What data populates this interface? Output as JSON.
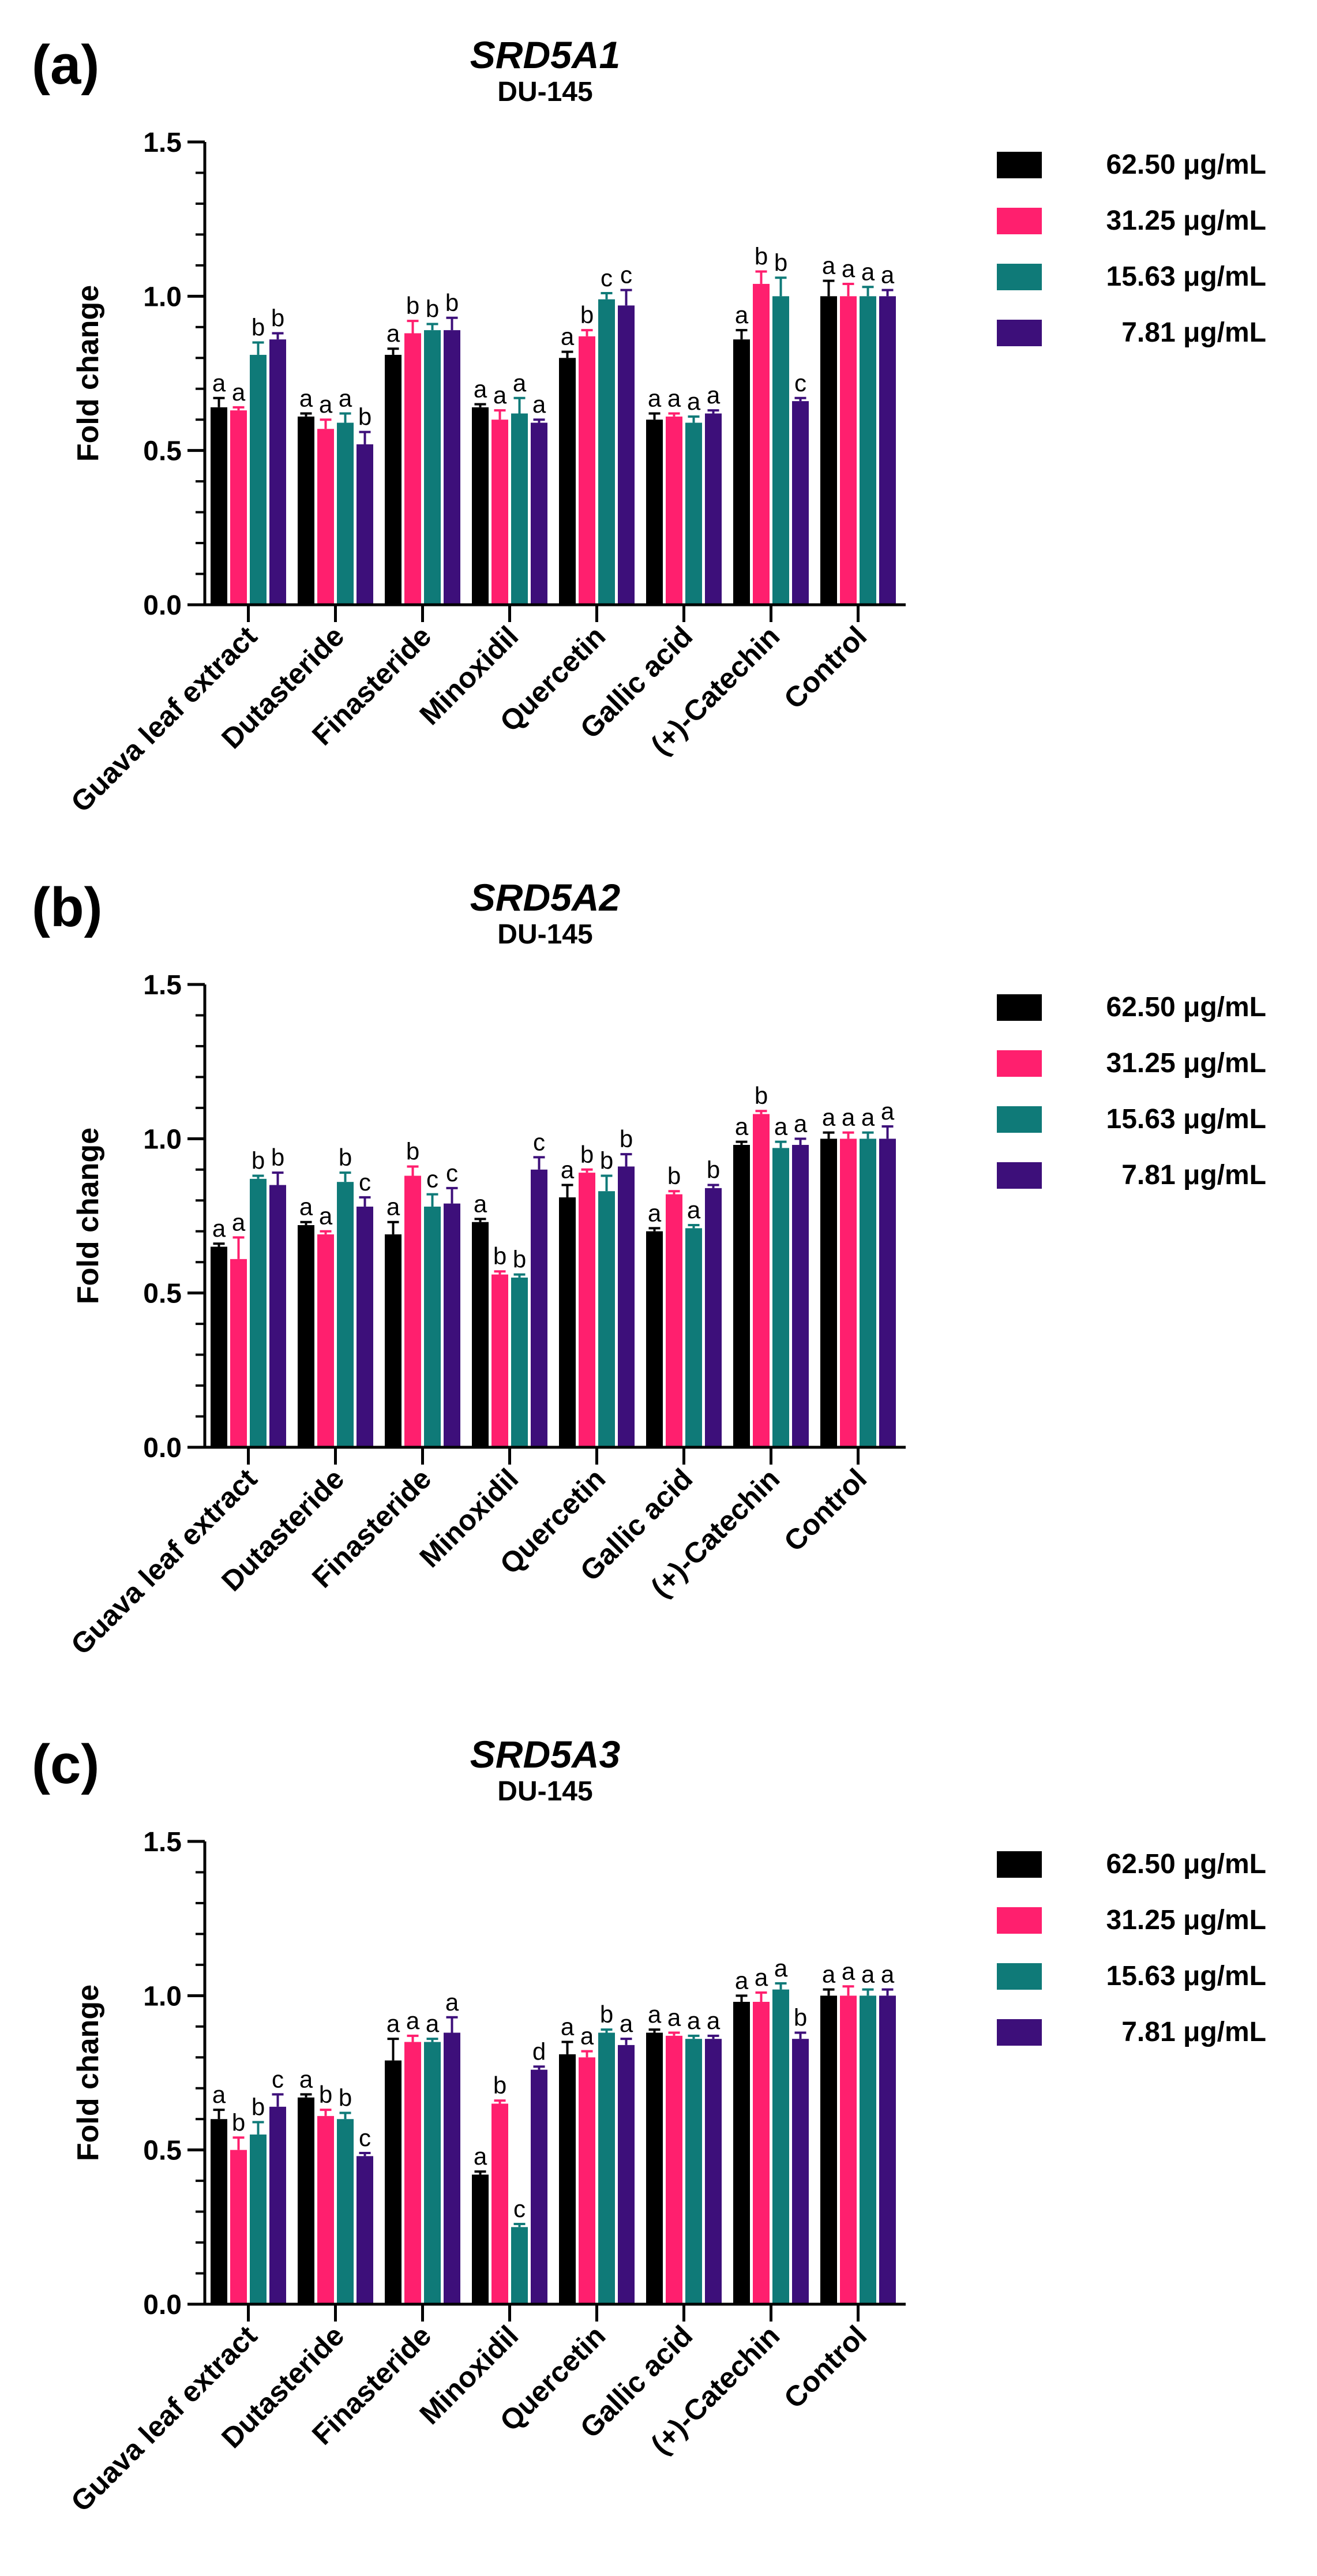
{
  "chart_data": [
    {
      "type": "bar",
      "panel": "(a)",
      "title": "SRD5A1",
      "subtitle": "DU-145",
      "ylabel": "Fold change",
      "xlabel": "",
      "ylim": [
        0,
        1.5
      ],
      "yticks": [
        "0.0",
        "0.5",
        "1.0",
        "1.5"
      ],
      "categories": [
        "Guava leaf extract",
        "Dutasteride",
        "Finasteride",
        "Minoxidil",
        "Quercetin",
        "Gallic acid",
        "(+)-Catechin",
        "Control"
      ],
      "legend": "right",
      "series": [
        {
          "name": "62.50 μg/mL",
          "color": "#000000",
          "values": [
            0.64,
            0.61,
            0.81,
            0.64,
            0.8,
            0.6,
            0.86,
            1.0
          ],
          "errors": [
            0.03,
            0.01,
            0.02,
            0.01,
            0.02,
            0.02,
            0.03,
            0.05
          ],
          "letters": [
            "a",
            "a",
            "a",
            "a",
            "a",
            "a",
            "a",
            "a"
          ]
        },
        {
          "name": "31.25 μg/mL",
          "color": "#ff1f6e",
          "values": [
            0.63,
            0.57,
            0.88,
            0.6,
            0.87,
            0.61,
            1.04,
            1.0
          ],
          "errors": [
            0.01,
            0.03,
            0.04,
            0.03,
            0.02,
            0.01,
            0.04,
            0.04
          ],
          "letters": [
            "a",
            "a",
            "b",
            "a",
            "b",
            "a",
            "b",
            "a"
          ]
        },
        {
          "name": "15.63 μg/mL",
          "color": "#0f7a78",
          "values": [
            0.81,
            0.59,
            0.89,
            0.62,
            0.99,
            0.59,
            1.0,
            1.0
          ],
          "errors": [
            0.04,
            0.03,
            0.02,
            0.05,
            0.02,
            0.02,
            0.06,
            0.03
          ],
          "letters": [
            "b",
            "a",
            "b",
            "a",
            "c",
            "a",
            "b",
            "a"
          ]
        },
        {
          "name": "7.81 μg/mL",
          "color": "#3d0f7a",
          "values": [
            0.86,
            0.52,
            0.89,
            0.59,
            0.97,
            0.62,
            0.66,
            1.0
          ],
          "errors": [
            0.02,
            0.04,
            0.04,
            0.01,
            0.05,
            0.01,
            0.01,
            0.02
          ],
          "letters": [
            "b",
            "b",
            "b",
            "a",
            "c",
            "a",
            "c",
            "a"
          ]
        }
      ]
    },
    {
      "type": "bar",
      "panel": "(b)",
      "title": "SRD5A2",
      "subtitle": "DU-145",
      "ylabel": "Fold change",
      "xlabel": "",
      "ylim": [
        0,
        1.5
      ],
      "yticks": [
        "0.0",
        "0.5",
        "1.0",
        "1.5"
      ],
      "categories": [
        "Guava leaf extract",
        "Dutasteride",
        "Finasteride",
        "Minoxidil",
        "Quercetin",
        "Gallic acid",
        "(+)-Catechin",
        "Control"
      ],
      "legend": "right",
      "series": [
        {
          "name": "62.50 μg/mL",
          "color": "#000000",
          "values": [
            0.65,
            0.72,
            0.69,
            0.73,
            0.81,
            0.7,
            0.98,
            1.0
          ],
          "errors": [
            0.01,
            0.01,
            0.04,
            0.01,
            0.04,
            0.01,
            0.01,
            0.02
          ],
          "letters": [
            "a",
            "a",
            "a",
            "a",
            "a",
            "a",
            "a",
            "a"
          ]
        },
        {
          "name": "31.25 μg/mL",
          "color": "#ff1f6e",
          "values": [
            0.61,
            0.69,
            0.88,
            0.56,
            0.89,
            0.82,
            1.08,
            1.0
          ],
          "errors": [
            0.07,
            0.01,
            0.03,
            0.01,
            0.01,
            0.01,
            0.01,
            0.02
          ],
          "letters": [
            "a",
            "a",
            "b",
            "b",
            "b",
            "b",
            "b",
            "a"
          ]
        },
        {
          "name": "15.63 μg/mL",
          "color": "#0f7a78",
          "values": [
            0.87,
            0.86,
            0.78,
            0.55,
            0.83,
            0.71,
            0.97,
            1.0
          ],
          "errors": [
            0.01,
            0.03,
            0.04,
            0.01,
            0.05,
            0.01,
            0.02,
            0.02
          ],
          "letters": [
            "b",
            "b",
            "c",
            "b",
            "b",
            "a",
            "a",
            "a"
          ]
        },
        {
          "name": "7.81 μg/mL",
          "color": "#3d0f7a",
          "values": [
            0.85,
            0.78,
            0.79,
            0.9,
            0.91,
            0.84,
            0.98,
            1.0
          ],
          "errors": [
            0.04,
            0.03,
            0.05,
            0.04,
            0.04,
            0.01,
            0.02,
            0.04
          ],
          "letters": [
            "b",
            "c",
            "c",
            "c",
            "b",
            "b",
            "a",
            "a"
          ]
        }
      ]
    },
    {
      "type": "bar",
      "panel": "(c)",
      "title": "SRD5A3",
      "subtitle": "DU-145",
      "ylabel": "Fold change",
      "xlabel": "",
      "ylim": [
        0,
        1.5
      ],
      "yticks": [
        "0.0",
        "0.5",
        "1.0",
        "1.5"
      ],
      "categories": [
        "Guava leaf extract",
        "Dutasteride",
        "Finasteride",
        "Minoxidil",
        "Quercetin",
        "Gallic acid",
        "(+)-Catechin",
        "Control"
      ],
      "legend": "right",
      "series": [
        {
          "name": "62.50 μg/mL",
          "color": "#000000",
          "values": [
            0.6,
            0.67,
            0.79,
            0.42,
            0.81,
            0.88,
            0.98,
            1.0
          ],
          "errors": [
            0.03,
            0.01,
            0.07,
            0.01,
            0.04,
            0.01,
            0.02,
            0.02
          ],
          "letters": [
            "a",
            "a",
            "a",
            "a",
            "a",
            "a",
            "a",
            "a"
          ]
        },
        {
          "name": "31.25 μg/mL",
          "color": "#ff1f6e",
          "values": [
            0.5,
            0.61,
            0.85,
            0.65,
            0.8,
            0.87,
            0.98,
            1.0
          ],
          "errors": [
            0.04,
            0.02,
            0.02,
            0.01,
            0.02,
            0.01,
            0.03,
            0.03
          ],
          "letters": [
            "b",
            "b",
            "a",
            "b",
            "a",
            "a",
            "a",
            "a"
          ]
        },
        {
          "name": "15.63 μg/mL",
          "color": "#0f7a78",
          "values": [
            0.55,
            0.6,
            0.85,
            0.25,
            0.88,
            0.86,
            1.02,
            1.0
          ],
          "errors": [
            0.04,
            0.02,
            0.01,
            0.01,
            0.01,
            0.01,
            0.02,
            0.02
          ],
          "letters": [
            "b",
            "b",
            "a",
            "c",
            "b",
            "a",
            "a",
            "a"
          ]
        },
        {
          "name": "7.81 μg/mL",
          "color": "#3d0f7a",
          "values": [
            0.64,
            0.48,
            0.88,
            0.76,
            0.84,
            0.86,
            0.86,
            1.0
          ],
          "errors": [
            0.04,
            0.01,
            0.05,
            0.01,
            0.02,
            0.01,
            0.02,
            0.02
          ],
          "letters": [
            "c",
            "c",
            "a",
            "d",
            "a",
            "a",
            "b",
            "a"
          ]
        }
      ]
    }
  ]
}
